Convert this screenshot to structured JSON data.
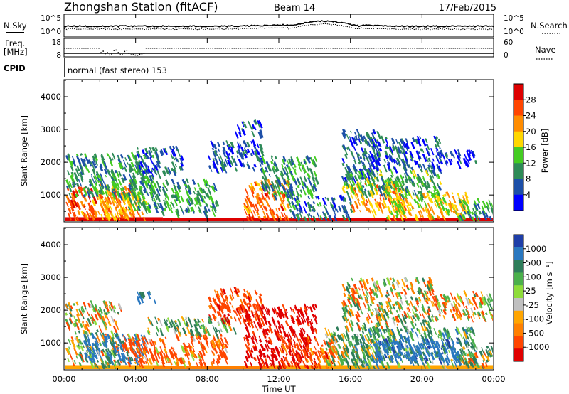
{
  "header": {
    "title": "Zhongshan Station (fitACF)",
    "beam": "Beam 14",
    "date": "17/Feb/2015"
  },
  "top_panels": {
    "nsky_label": "N.Sky",
    "nsky_ticks": [
      "10^5",
      "10^0"
    ],
    "nsearch_label": "N.Search",
    "nsearch_ticks": [
      "10^5",
      "10^0"
    ],
    "freq_label_1": "Freq.",
    "freq_label_2": "[MHz]",
    "freq_ticks": [
      "18",
      "8"
    ],
    "nave_label": "Nave",
    "nave_ticks": [
      "60",
      "0"
    ],
    "cpid_label": "CPID",
    "cpid_text": "normal (fast stereo) 153"
  },
  "x_axis": {
    "ticks": [
      "00:00",
      "04:00",
      "08:00",
      "12:00",
      "16:00",
      "20:00",
      "00:00"
    ],
    "label": "Time UT"
  },
  "colors": {
    "power_scale": [
      "#0000ff",
      "#1c4fa8",
      "#2e8b57",
      "#44cc22",
      "#ffd700",
      "#ff8c00",
      "#ff4500",
      "#dd0000"
    ],
    "velocity_scale": [
      "#1e3ea8",
      "#2a78c0",
      "#2e7d5a",
      "#4bb04b",
      "#8edc3a",
      "#c0c0c0",
      "#ffa500",
      "#ff7f00",
      "#ff4500",
      "#e00000"
    ]
  },
  "chart_data": [
    {
      "type": "heatmap",
      "name": "power_panel",
      "ylabel": "Slant Range [km]",
      "yticks": [
        "4000",
        "3000",
        "2000",
        "1000"
      ],
      "ylim": [
        200,
        4500
      ],
      "xlim_hours": [
        0,
        24
      ],
      "colorbar_label": "Power [dB]",
      "colorbar_ticks": [
        "28",
        "24",
        "20",
        "16",
        "12",
        "8",
        "4"
      ],
      "colorbar_range": [
        0,
        30
      ],
      "regions": [
        {
          "t0": 0.0,
          "t1": 5.5,
          "r0": 200,
          "r1": 320,
          "level": 30
        },
        {
          "t0": 5.5,
          "t1": 11.0,
          "r0": 200,
          "r1": 300,
          "level": 29
        },
        {
          "t0": 11.0,
          "t1": 24.0,
          "r0": 200,
          "r1": 300,
          "level": 29
        },
        {
          "t0": 0.0,
          "t1": 0.8,
          "r0": 300,
          "r1": 1400,
          "level": 26
        },
        {
          "t0": 0.8,
          "t1": 1.6,
          "r0": 320,
          "r1": 1300,
          "level": 24
        },
        {
          "t0": 1.6,
          "t1": 3.8,
          "r0": 400,
          "r1": 1400,
          "level": 22
        },
        {
          "t0": 2.0,
          "t1": 4.5,
          "r0": 300,
          "r1": 1200,
          "level": 20
        },
        {
          "t0": 0.0,
          "t1": 5.0,
          "r0": 1000,
          "r1": 2300,
          "level": 10
        },
        {
          "t0": 3.5,
          "t1": 8.5,
          "r0": 500,
          "r1": 1500,
          "level": 11
        },
        {
          "t0": 4.0,
          "t1": 6.5,
          "r0": 1700,
          "r1": 2500,
          "level": 7
        },
        {
          "t0": 8.0,
          "t1": 11.0,
          "r0": 1800,
          "r1": 2700,
          "level": 6
        },
        {
          "t0": 9.5,
          "t1": 11.0,
          "r0": 2900,
          "r1": 3300,
          "level": 5
        },
        {
          "t0": 10.0,
          "t1": 12.5,
          "r0": 300,
          "r1": 1500,
          "level": 24
        },
        {
          "t0": 11.0,
          "t1": 14.0,
          "r0": 1000,
          "r1": 2200,
          "level": 10
        },
        {
          "t0": 12.5,
          "t1": 16.0,
          "r0": 300,
          "r1": 1000,
          "level": 8
        },
        {
          "t0": 15.5,
          "t1": 17.5,
          "r0": 1500,
          "r1": 3000,
          "level": 7
        },
        {
          "t0": 16.0,
          "t1": 19.0,
          "r0": 500,
          "r1": 1400,
          "level": 22
        },
        {
          "t0": 15.5,
          "t1": 21.0,
          "r0": 1000,
          "r1": 1800,
          "level": 12
        },
        {
          "t0": 18.0,
          "t1": 22.5,
          "r0": 300,
          "r1": 1100,
          "level": 19
        },
        {
          "t0": 17.0,
          "t1": 21.0,
          "r0": 1800,
          "r1": 2800,
          "level": 6
        },
        {
          "t0": 20.5,
          "t1": 23.0,
          "r0": 2000,
          "r1": 2400,
          "level": 4
        },
        {
          "t0": 22.0,
          "t1": 24.0,
          "r0": 300,
          "r1": 900,
          "level": 11
        }
      ]
    },
    {
      "type": "heatmap",
      "name": "velocity_panel",
      "ylabel": "Slant Range [km]",
      "yticks": [
        "4000",
        "3000",
        "2000",
        "1000"
      ],
      "ylim": [
        200,
        4500
      ],
      "xlim_hours": [
        0,
        24
      ],
      "colorbar_label": "Velocity [m s⁻¹]",
      "colorbar_ticks": [
        "1000",
        "500",
        "100",
        "25",
        "-25",
        "-100",
        "-500",
        "-1000"
      ],
      "colorbar_range": [
        -1200,
        1200
      ],
      "regions": [
        {
          "t0": 0.0,
          "t1": 5.5,
          "r0": 200,
          "r1": 320,
          "level": 10
        },
        {
          "t0": 5.0,
          "t1": 11.5,
          "r0": 200,
          "r1": 300,
          "level": -80
        },
        {
          "t0": 11.5,
          "t1": 24.0,
          "r0": 200,
          "r1": 320,
          "level": 20
        },
        {
          "t0": 0.0,
          "t1": 3.0,
          "r0": 300,
          "r1": 1400,
          "level": 150
        },
        {
          "t0": 0.0,
          "t1": 3.0,
          "r0": 1500,
          "r1": 2300,
          "level": 0
        },
        {
          "t0": 1.0,
          "t1": 4.5,
          "r0": 500,
          "r1": 1300,
          "level": 600
        },
        {
          "t0": 3.0,
          "t1": 9.0,
          "r0": 400,
          "r1": 1300,
          "level": -200
        },
        {
          "t0": 4.5,
          "t1": 9.5,
          "r0": 1300,
          "r1": 1800,
          "level": 200
        },
        {
          "t0": 4.0,
          "t1": 5.0,
          "r0": 2300,
          "r1": 2600,
          "level": 700
        },
        {
          "t0": 8.0,
          "t1": 11.0,
          "r0": 1700,
          "r1": 2700,
          "level": -300
        },
        {
          "t0": 10.0,
          "t1": 14.0,
          "r0": 300,
          "r1": 2200,
          "level": -700
        },
        {
          "t0": 12.0,
          "t1": 15.0,
          "r0": 300,
          "r1": 1200,
          "level": -300
        },
        {
          "t0": 14.5,
          "t1": 17.5,
          "r0": 300,
          "r1": 1500,
          "level": 200
        },
        {
          "t0": 15.5,
          "t1": 20.5,
          "r0": 1500,
          "r1": 3000,
          "level": 70
        },
        {
          "t0": 16.0,
          "t1": 23.0,
          "r0": 400,
          "r1": 1500,
          "level": 300
        },
        {
          "t0": 17.0,
          "t1": 22.0,
          "r0": 500,
          "r1": 1200,
          "level": 800
        },
        {
          "t0": 20.5,
          "t1": 24.0,
          "r0": 1800,
          "r1": 2600,
          "level": 0
        },
        {
          "t0": 22.0,
          "t1": 24.0,
          "r0": 300,
          "r1": 900,
          "level": 150
        }
      ]
    }
  ]
}
